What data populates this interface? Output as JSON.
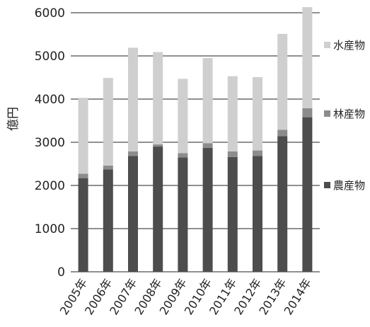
{
  "chart_data": {
    "type": "bar",
    "stacked": true,
    "ylabel": "億円",
    "ylim": [
      0,
      6000
    ],
    "yticks": [
      0,
      1000,
      2000,
      3000,
      4000,
      5000,
      6000
    ],
    "grid": true,
    "legend_position": "right",
    "categories": [
      "2005年",
      "2006年",
      "2007年",
      "2008年",
      "2009年",
      "2010年",
      "2011年",
      "2012年",
      "2013年",
      "2014年"
    ],
    "series": [
      {
        "name": "農産物",
        "color": "#4d4d4d",
        "values": [
          2170,
          2370,
          2680,
          2900,
          2650,
          2870,
          2660,
          2680,
          3140,
          3580
        ]
      },
      {
        "name": "林産物",
        "color": "#8c8c8c",
        "values": [
          100,
          90,
          110,
          50,
          100,
          110,
          130,
          130,
          150,
          210
        ]
      },
      {
        "name": "水産物",
        "color": "#cfcfcf",
        "values": [
          1760,
          2030,
          2400,
          2140,
          1720,
          1970,
          1740,
          1700,
          2220,
          2340
        ]
      }
    ]
  }
}
